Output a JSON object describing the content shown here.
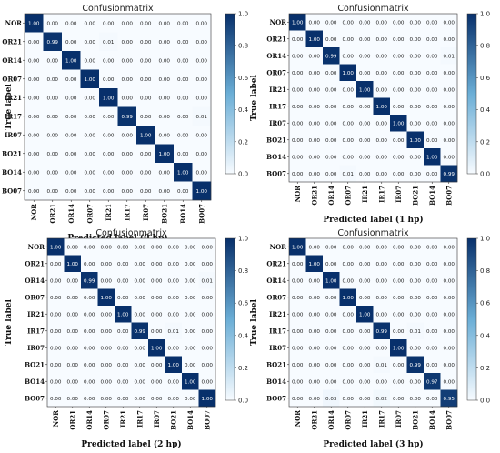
{
  "colorbar": {
    "ticks": [
      "0.0",
      "0.2",
      "0.4",
      "0.6",
      "0.8",
      "1.0"
    ],
    "colors": {
      "low": "#f7fbff",
      "mid": "#6baed6",
      "high": "#08306b"
    }
  },
  "chart_data": [
    {
      "type": "heatmap",
      "title": "Confusionmatrix",
      "xlabel": "Predicted label",
      "xlabel_suffix": "(0 hp)",
      "ylabel": "True label",
      "labels": [
        "NOR",
        "OR21",
        "OR14",
        "OR07",
        "IR21",
        "IR17",
        "IR07",
        "BO21",
        "BO14",
        "BO07"
      ],
      "values": [
        [
          1.0,
          0.0,
          0.0,
          0.0,
          0.0,
          0.0,
          0.0,
          0.0,
          0.0,
          0.0
        ],
        [
          0.0,
          0.99,
          0.0,
          0.0,
          0.01,
          0.0,
          0.0,
          0.0,
          0.0,
          0.0
        ],
        [
          0.0,
          0.0,
          1.0,
          0.0,
          0.0,
          0.0,
          0.0,
          0.0,
          0.0,
          0.0
        ],
        [
          0.0,
          0.0,
          0.0,
          1.0,
          0.0,
          0.0,
          0.0,
          0.0,
          0.0,
          0.0
        ],
        [
          0.0,
          0.0,
          0.0,
          0.0,
          1.0,
          0.0,
          0.0,
          0.0,
          0.0,
          0.0
        ],
        [
          0.0,
          0.0,
          0.0,
          0.0,
          0.0,
          0.99,
          0.0,
          0.0,
          0.0,
          0.01
        ],
        [
          0.0,
          0.0,
          0.0,
          0.0,
          0.0,
          0.0,
          1.0,
          0.0,
          0.0,
          0.0
        ],
        [
          0.0,
          0.0,
          0.0,
          0.0,
          0.0,
          0.0,
          0.0,
          1.0,
          0.0,
          0.0
        ],
        [
          0.0,
          0.0,
          0.0,
          0.0,
          0.0,
          0.0,
          0.0,
          0.0,
          1.0,
          0.0
        ],
        [
          0.0,
          0.0,
          0.0,
          0.0,
          0.0,
          0.0,
          0.0,
          0.0,
          0.0,
          1.0
        ]
      ],
      "colorbar_range": [
        0.0,
        1.0
      ]
    },
    {
      "type": "heatmap",
      "title": "Confusionmatrix",
      "xlabel": "Predicted label",
      "xlabel_suffix": "(1 hp)",
      "ylabel": "True label",
      "labels": [
        "NOR",
        "OR21",
        "OR14",
        "OR07",
        "IR21",
        "IR17",
        "IR07",
        "BO21",
        "BO14",
        "BO07"
      ],
      "values": [
        [
          1.0,
          0.0,
          0.0,
          0.0,
          0.0,
          0.0,
          0.0,
          0.0,
          0.0,
          0.0
        ],
        [
          0.0,
          1.0,
          0.0,
          0.0,
          0.0,
          0.0,
          0.0,
          0.0,
          0.0,
          0.0
        ],
        [
          0.0,
          0.0,
          0.99,
          0.0,
          0.0,
          0.0,
          0.0,
          0.0,
          0.0,
          0.01
        ],
        [
          0.0,
          0.0,
          0.0,
          1.0,
          0.0,
          0.0,
          0.0,
          0.0,
          0.0,
          0.0
        ],
        [
          0.0,
          0.0,
          0.0,
          0.0,
          1.0,
          0.0,
          0.0,
          0.0,
          0.0,
          0.0
        ],
        [
          0.0,
          0.0,
          0.0,
          0.0,
          0.0,
          1.0,
          0.0,
          0.0,
          0.0,
          0.0
        ],
        [
          0.0,
          0.0,
          0.0,
          0.0,
          0.0,
          0.0,
          1.0,
          0.0,
          0.0,
          0.0
        ],
        [
          0.0,
          0.0,
          0.0,
          0.0,
          0.0,
          0.0,
          0.0,
          1.0,
          0.0,
          0.0
        ],
        [
          0.0,
          0.0,
          0.0,
          0.0,
          0.0,
          0.0,
          0.0,
          0.0,
          1.0,
          0.0
        ],
        [
          0.0,
          0.0,
          0.0,
          0.01,
          0.0,
          0.0,
          0.0,
          0.0,
          0.0,
          0.99
        ]
      ],
      "colorbar_range": [
        0.0,
        1.0
      ]
    },
    {
      "type": "heatmap",
      "title": "Confusionmatrix",
      "xlabel": "Predicted label",
      "xlabel_suffix": "(2 hp)",
      "ylabel": "True label",
      "labels": [
        "NOR",
        "OR21",
        "OR14",
        "OR07",
        "IR21",
        "IR17",
        "IR07",
        "BO21",
        "BO14",
        "BO07"
      ],
      "values": [
        [
          1.0,
          0.0,
          0.0,
          0.0,
          0.0,
          0.0,
          0.0,
          0.0,
          0.0,
          0.0
        ],
        [
          0.0,
          1.0,
          0.0,
          0.0,
          0.0,
          0.0,
          0.0,
          0.0,
          0.0,
          0.0
        ],
        [
          0.0,
          0.0,
          0.99,
          0.0,
          0.0,
          0.0,
          0.0,
          0.0,
          0.0,
          0.01
        ],
        [
          0.0,
          0.0,
          0.0,
          1.0,
          0.0,
          0.0,
          0.0,
          0.0,
          0.0,
          0.0
        ],
        [
          0.0,
          0.0,
          0.0,
          0.0,
          1.0,
          0.0,
          0.0,
          0.0,
          0.0,
          0.0
        ],
        [
          0.0,
          0.0,
          0.0,
          0.0,
          0.0,
          0.99,
          0.0,
          0.01,
          0.0,
          0.0
        ],
        [
          0.0,
          0.0,
          0.0,
          0.0,
          0.0,
          0.0,
          1.0,
          0.0,
          0.0,
          0.0
        ],
        [
          0.0,
          0.0,
          0.0,
          0.0,
          0.0,
          0.0,
          0.0,
          1.0,
          0.0,
          0.0
        ],
        [
          0.0,
          0.0,
          0.0,
          0.0,
          0.0,
          0.0,
          0.0,
          0.0,
          1.0,
          0.0
        ],
        [
          0.0,
          0.0,
          0.0,
          0.0,
          0.0,
          0.0,
          0.0,
          0.0,
          0.0,
          1.0
        ]
      ],
      "colorbar_range": [
        0.0,
        1.0
      ]
    },
    {
      "type": "heatmap",
      "title": "Confusionmatrix",
      "xlabel": "Predicted label",
      "xlabel_suffix": "(3 hp)",
      "ylabel": "True label",
      "labels": [
        "NOR",
        "OR21",
        "OR14",
        "OR07",
        "IR21",
        "IR17",
        "IR07",
        "BO21",
        "BO14",
        "BO07"
      ],
      "values": [
        [
          1.0,
          0.0,
          0.0,
          0.0,
          0.0,
          0.0,
          0.0,
          0.0,
          0.0,
          0.0
        ],
        [
          0.0,
          1.0,
          0.0,
          0.0,
          0.0,
          0.0,
          0.0,
          0.0,
          0.0,
          0.0
        ],
        [
          0.0,
          0.0,
          1.0,
          0.0,
          0.0,
          0.0,
          0.0,
          0.0,
          0.0,
          0.0
        ],
        [
          0.0,
          0.0,
          0.0,
          1.0,
          0.0,
          0.0,
          0.0,
          0.0,
          0.0,
          0.0
        ],
        [
          0.0,
          0.0,
          0.0,
          0.0,
          1.0,
          0.0,
          0.0,
          0.0,
          0.0,
          0.0
        ],
        [
          0.0,
          0.0,
          0.0,
          0.0,
          0.0,
          0.99,
          0.0,
          0.01,
          0.0,
          0.0
        ],
        [
          0.0,
          0.0,
          0.0,
          0.0,
          0.0,
          0.0,
          1.0,
          0.0,
          0.0,
          0.0
        ],
        [
          0.0,
          0.0,
          0.0,
          0.0,
          0.0,
          0.01,
          0.0,
          0.99,
          0.0,
          0.0
        ],
        [
          0.0,
          0.0,
          0.0,
          0.0,
          0.0,
          0.0,
          0.0,
          0.0,
          0.97,
          0.0
        ],
        [
          0.0,
          0.0,
          0.03,
          0.0,
          0.0,
          0.02,
          0.0,
          0.0,
          0.0,
          0.95
        ]
      ],
      "colorbar_range": [
        0.0,
        1.0
      ]
    }
  ]
}
